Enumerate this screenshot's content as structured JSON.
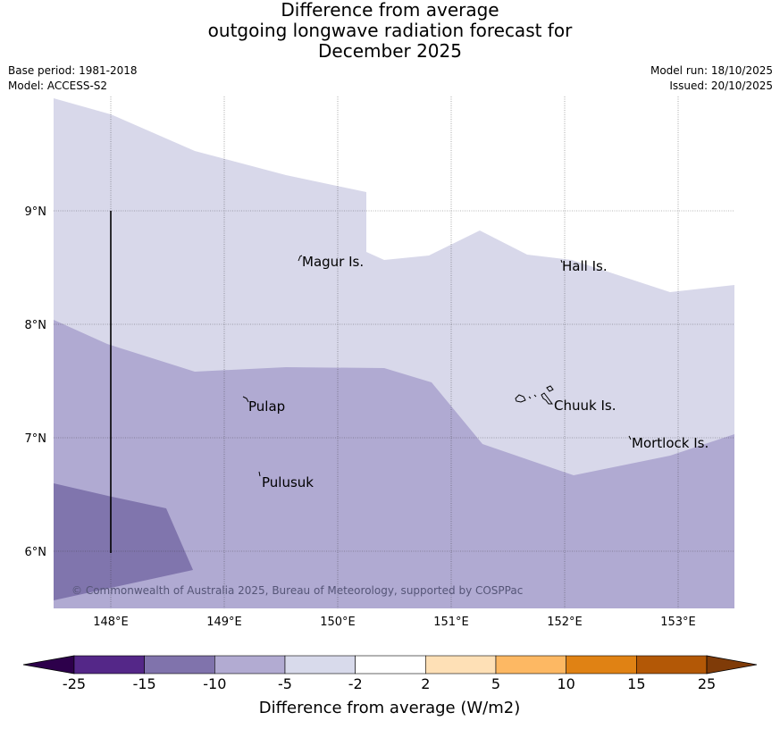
{
  "title": {
    "line1": "Difference from average",
    "line2": "outgoing longwave radiation forecast for",
    "line3": "December 2025"
  },
  "meta": {
    "base_period": "Base period: 1981-2018",
    "model": "Model: ACCESS-S2",
    "model_run": "Model run: 18/10/2025",
    "issued": "Issued: 20/10/2025"
  },
  "map": {
    "lon_range": [
      147.5,
      153.5
    ],
    "lat_range": [
      5.5,
      10.0
    ],
    "lon_ticks": [
      "148°E",
      "149°E",
      "150°E",
      "151°E",
      "152°E",
      "153°E"
    ],
    "lat_ticks": [
      "9°N",
      "8°N",
      "7°N",
      "6°N"
    ],
    "places": [
      "Magur Is.",
      "Hall Is.",
      "Pulap",
      "Chuuk Is.",
      "Mortlock Is.",
      "Pulusuk"
    ],
    "copyright": "© Commonwealth of Australia 2025, Bureau of Meteorology, supported by COSPPac",
    "colors": {
      "band_neg5_neg2": "#d8d8ea",
      "band_neg10_neg5": "#b0aad2",
      "band_neg15_neg10": "#8075ad",
      "grid": "#333333",
      "cross_section_line": "#000000"
    }
  },
  "colorbar": {
    "labels": [
      "-25",
      "-15",
      "-10",
      "-5",
      "-2",
      "2",
      "5",
      "10",
      "15",
      "25"
    ],
    "colors": [
      "#2d004b",
      "#542788",
      "#8073ac",
      "#b2abd2",
      "#d8daeb",
      "#ffffff",
      "#fee0b6",
      "#fdb863",
      "#e08214",
      "#b35806",
      "#7f3b08"
    ],
    "title": "Difference from average (W/m2)"
  }
}
